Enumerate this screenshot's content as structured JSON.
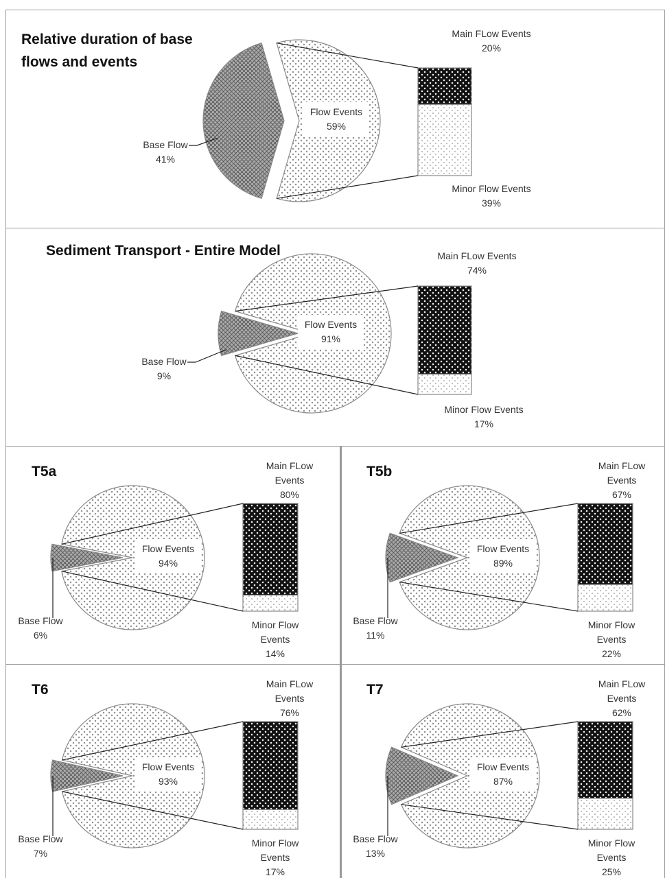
{
  "chart_data": [
    {
      "type": "pie_of_bar",
      "title": "Relative duration of base flows and events",
      "categories": [
        "Base Flow",
        "Flow Events"
      ],
      "values": [
        41,
        59
      ],
      "value_labels": [
        "41%",
        "59%"
      ],
      "breakout": {
        "categories": [
          "Main FLow Events",
          "Minor Flow Events"
        ],
        "values": [
          20,
          39
        ],
        "value_labels": [
          "20%",
          "39%"
        ]
      }
    },
    {
      "type": "pie_of_bar",
      "title": "Sediment Transport - Entire Model",
      "categories": [
        "Base Flow",
        "Flow Events"
      ],
      "values": [
        9,
        91
      ],
      "value_labels": [
        "9%",
        "91%"
      ],
      "breakout": {
        "categories": [
          "Main FLow Events",
          "Minor Flow Events"
        ],
        "values": [
          74,
          17
        ],
        "value_labels": [
          "74%",
          "17%"
        ]
      }
    },
    {
      "type": "pie_of_bar",
      "title": "T5a",
      "categories": [
        "Base Flow",
        "Flow Events"
      ],
      "values": [
        6,
        94
      ],
      "value_labels": [
        "6%",
        "94%"
      ],
      "breakout": {
        "categories": [
          "Main FLow Events",
          "Minor Flow Events"
        ],
        "values": [
          80,
          14
        ],
        "value_labels": [
          "80%",
          "14%"
        ]
      }
    },
    {
      "type": "pie_of_bar",
      "title": "T5b",
      "categories": [
        "Base Flow",
        "Flow Events"
      ],
      "values": [
        11,
        89
      ],
      "value_labels": [
        "11%",
        "89%"
      ],
      "breakout": {
        "categories": [
          "Main FLow Events",
          "Minor Flow Events"
        ],
        "values": [
          67,
          22
        ],
        "value_labels": [
          "67%",
          "22%"
        ]
      }
    },
    {
      "type": "pie_of_bar",
      "title": "T6",
      "categories": [
        "Base Flow",
        "Flow Events"
      ],
      "values": [
        7,
        93
      ],
      "value_labels": [
        "7%",
        "93%"
      ],
      "breakout": {
        "categories": [
          "Main FLow Events",
          "Minor Flow Events"
        ],
        "values": [
          76,
          17
        ],
        "value_labels": [
          "76%",
          "17%"
        ]
      }
    },
    {
      "type": "pie_of_bar",
      "title": "T7",
      "categories": [
        "Base Flow",
        "Flow Events"
      ],
      "values": [
        13,
        87
      ],
      "value_labels": [
        "13%",
        "87%"
      ],
      "breakout": {
        "categories": [
          "Main FLow Events",
          "Minor Flow Events"
        ],
        "values": [
          62,
          25
        ],
        "value_labels": [
          "62%",
          "25%"
        ]
      }
    }
  ]
}
